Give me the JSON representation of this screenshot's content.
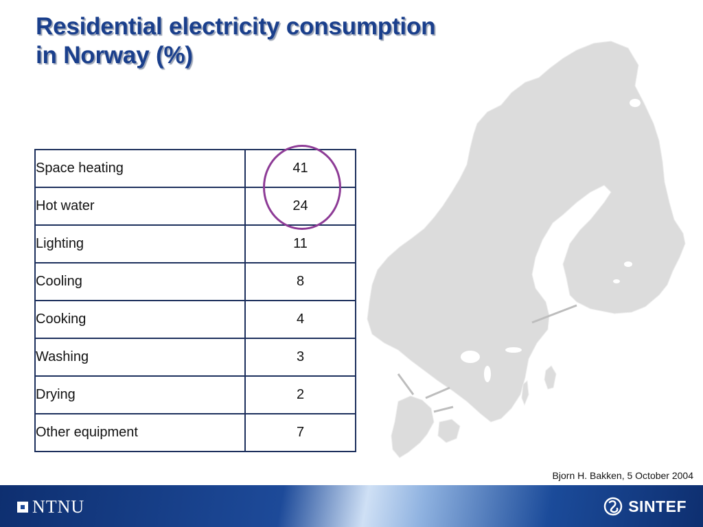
{
  "slide": {
    "title_line1": "Residential electricity consumption",
    "title_line2": "in Norway (%)"
  },
  "table": {
    "rows": [
      {
        "use": "Space heating",
        "percent": "41"
      },
      {
        "use": "Hot water",
        "percent": "24"
      },
      {
        "use": "Lighting",
        "percent": "11"
      },
      {
        "use": "Cooling",
        "percent": "8"
      },
      {
        "use": "Cooking",
        "percent": "4"
      },
      {
        "use": "Washing",
        "percent": "3"
      },
      {
        "use": "Drying",
        "percent": "2"
      },
      {
        "use": "Other equipment",
        "percent": "7"
      }
    ],
    "highlighted_rows": [
      "Space heating",
      "Hot water"
    ]
  },
  "credit": "Bjorn H. Bakken, 5 October 2004",
  "footer": {
    "left_logo_text": "NTNU",
    "right_logo_text": "SINTEF"
  },
  "colors": {
    "title": "#1a3f8c",
    "highlight_circle": "#8d3b96",
    "table_border": "#1c2f5c",
    "map_fill": "#dcdcdc",
    "footer_dark": "#0e2f70"
  }
}
